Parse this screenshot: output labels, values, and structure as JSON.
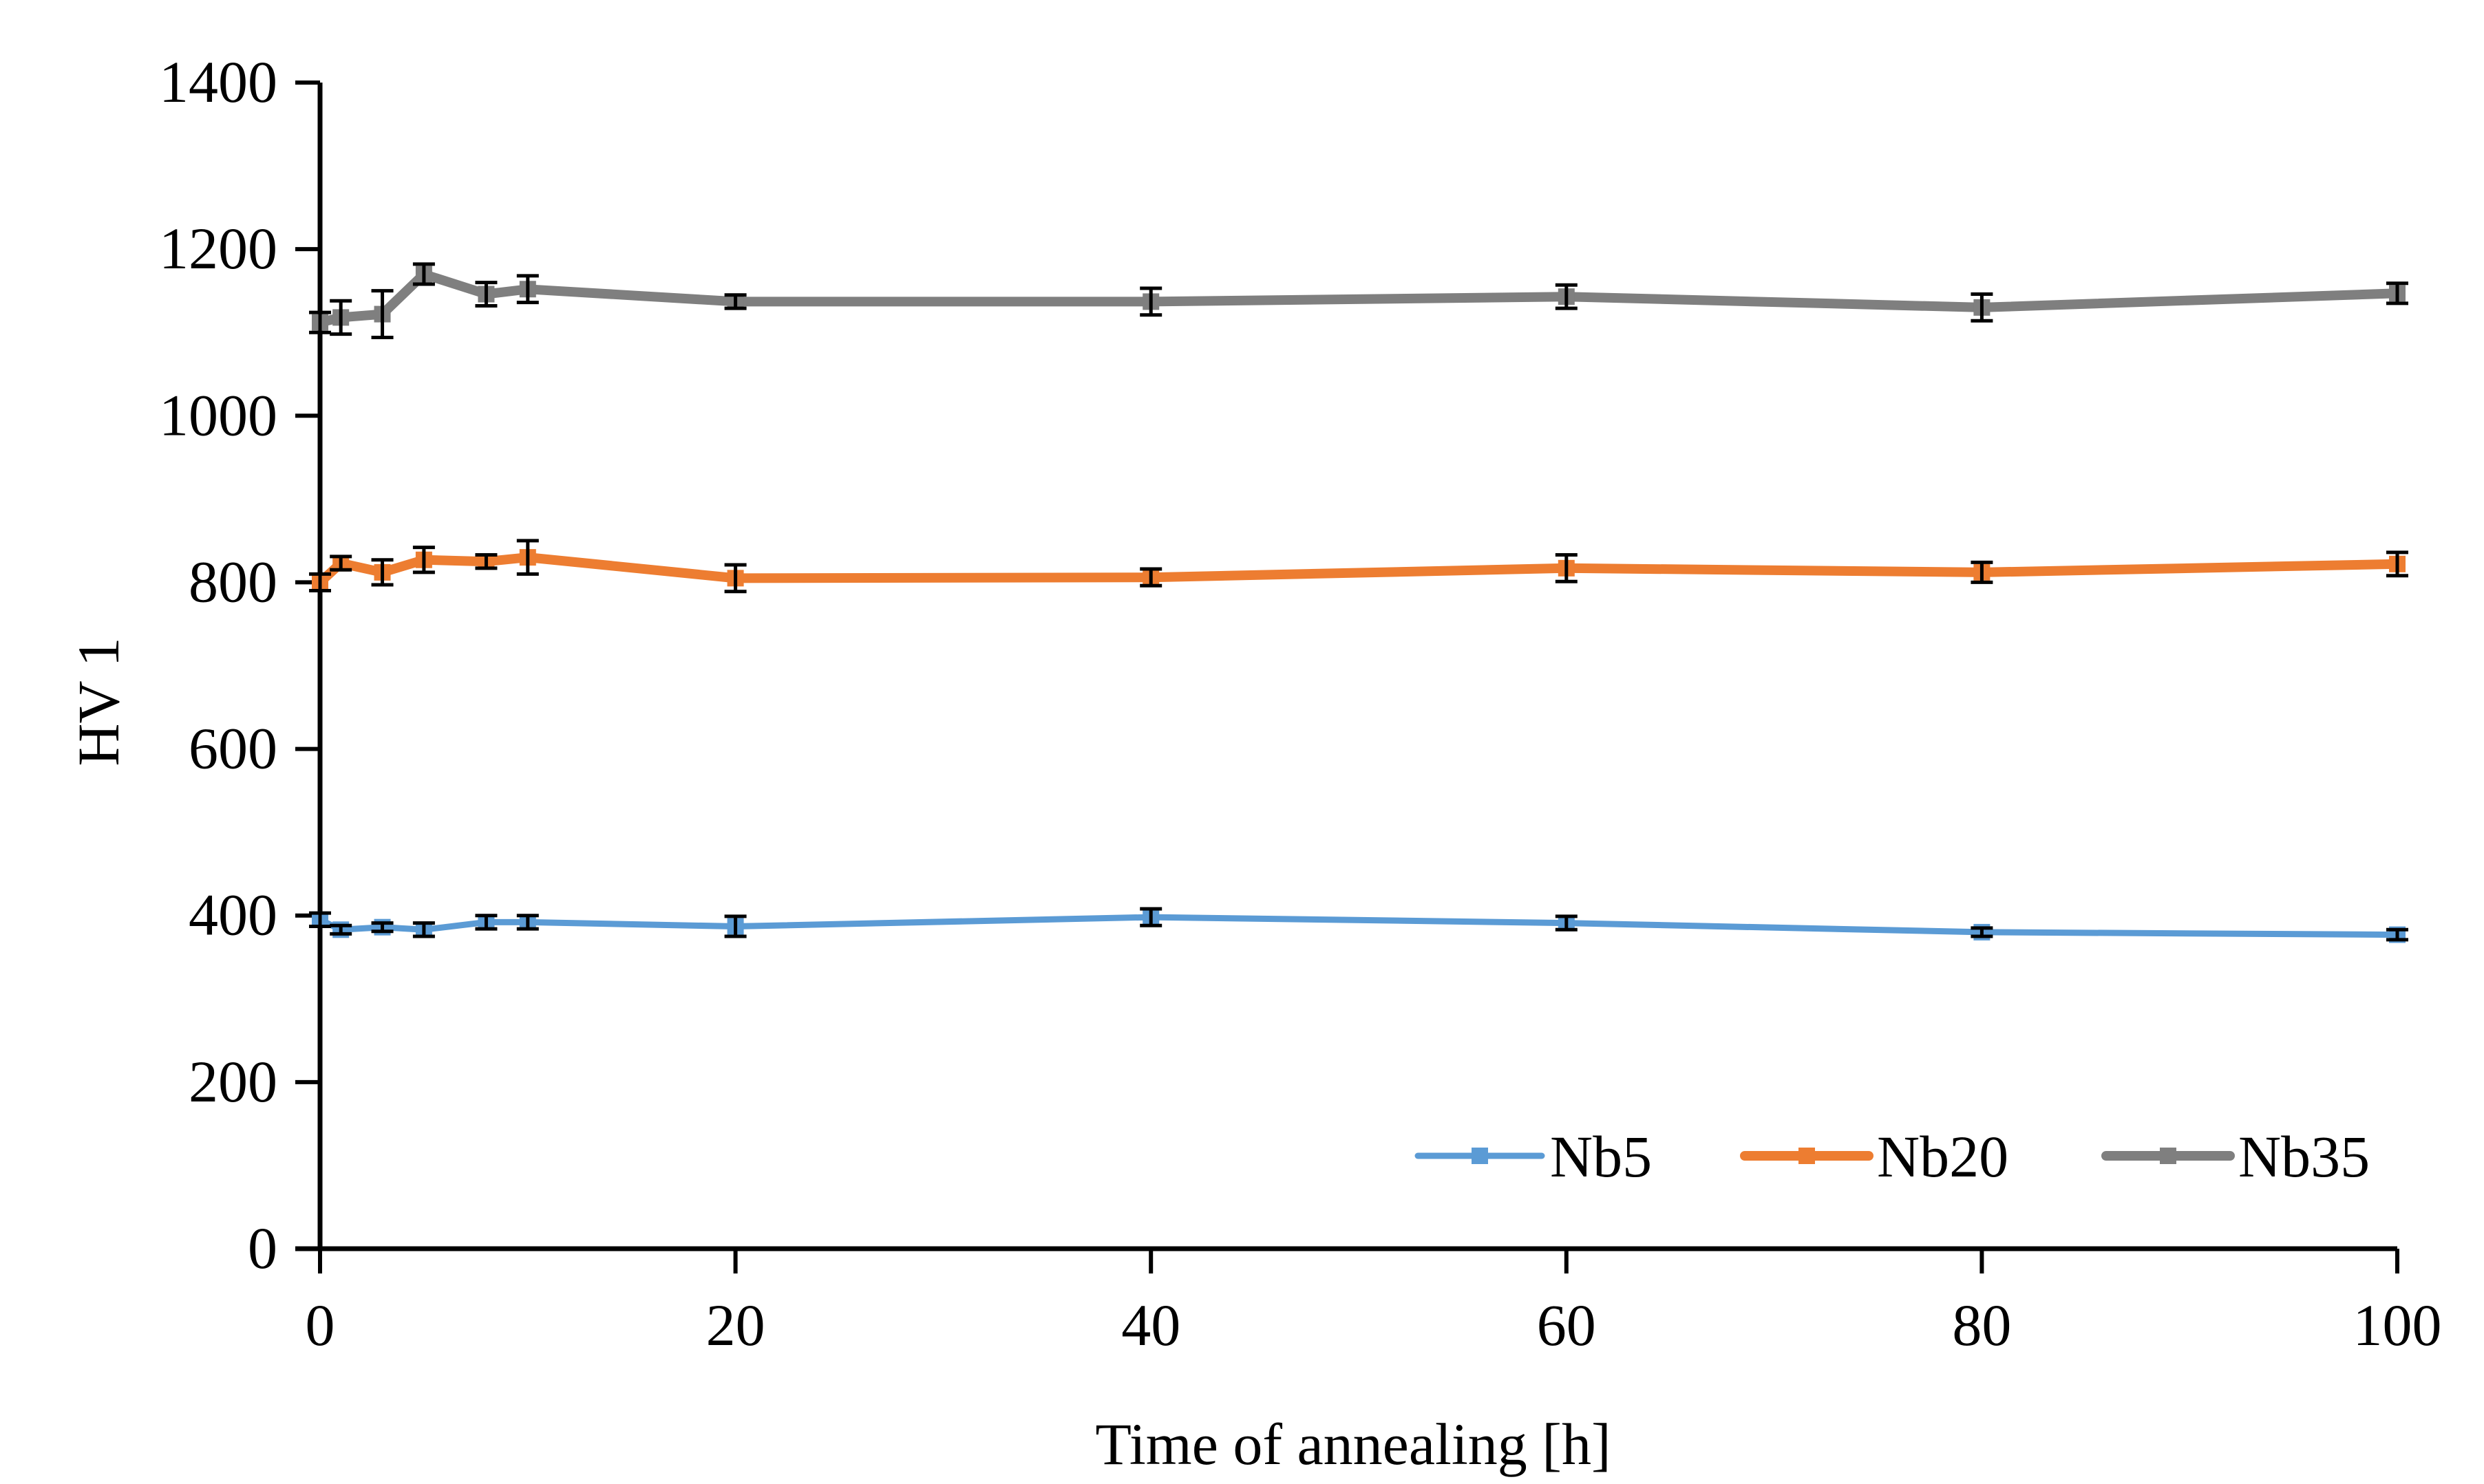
{
  "chart_data": {
    "type": "line",
    "title": "",
    "xlabel": "Time of annealing [h]",
    "ylabel": "HV 1",
    "xlim": [
      0,
      100
    ],
    "ylim": [
      0,
      1400
    ],
    "x_ticks": [
      "0",
      "20",
      "40",
      "60",
      "80",
      "100"
    ],
    "y_ticks": [
      "0",
      "200",
      "400",
      "600",
      "800",
      "1000",
      "1200",
      "1400"
    ],
    "grid": false,
    "legend_position": "bottom-right",
    "error_bars": true,
    "series": [
      {
        "name": "Nb5",
        "color": "#5b9bd5",
        "x": [
          0,
          1,
          3,
          5,
          8,
          10,
          20,
          40,
          60,
          80,
          100
        ],
        "y": [
          395,
          383,
          386,
          383,
          392,
          392,
          387,
          398,
          391,
          380,
          377
        ],
        "err": [
          8,
          5,
          5,
          8,
          8,
          8,
          12,
          10,
          8,
          5,
          6
        ]
      },
      {
        "name": "Nb20",
        "color": "#ed7d31",
        "x": [
          0,
          1,
          3,
          5,
          8,
          10,
          20,
          40,
          60,
          80,
          100
        ],
        "y": [
          800,
          823,
          812,
          827,
          825,
          830,
          805,
          806,
          817,
          812,
          822
        ],
        "err": [
          10,
          8,
          15,
          15,
          8,
          20,
          16,
          10,
          16,
          12,
          14
        ]
      },
      {
        "name": "Nb35",
        "color": "#7f7f7f",
        "x": [
          0,
          1,
          3,
          5,
          8,
          10,
          20,
          40,
          60,
          80,
          100
        ],
        "y": [
          1112,
          1118,
          1122,
          1170,
          1146,
          1152,
          1137,
          1137,
          1143,
          1130,
          1147
        ],
        "err": [
          12,
          20,
          28,
          12,
          14,
          16,
          8,
          16,
          14,
          16,
          12
        ]
      }
    ]
  }
}
